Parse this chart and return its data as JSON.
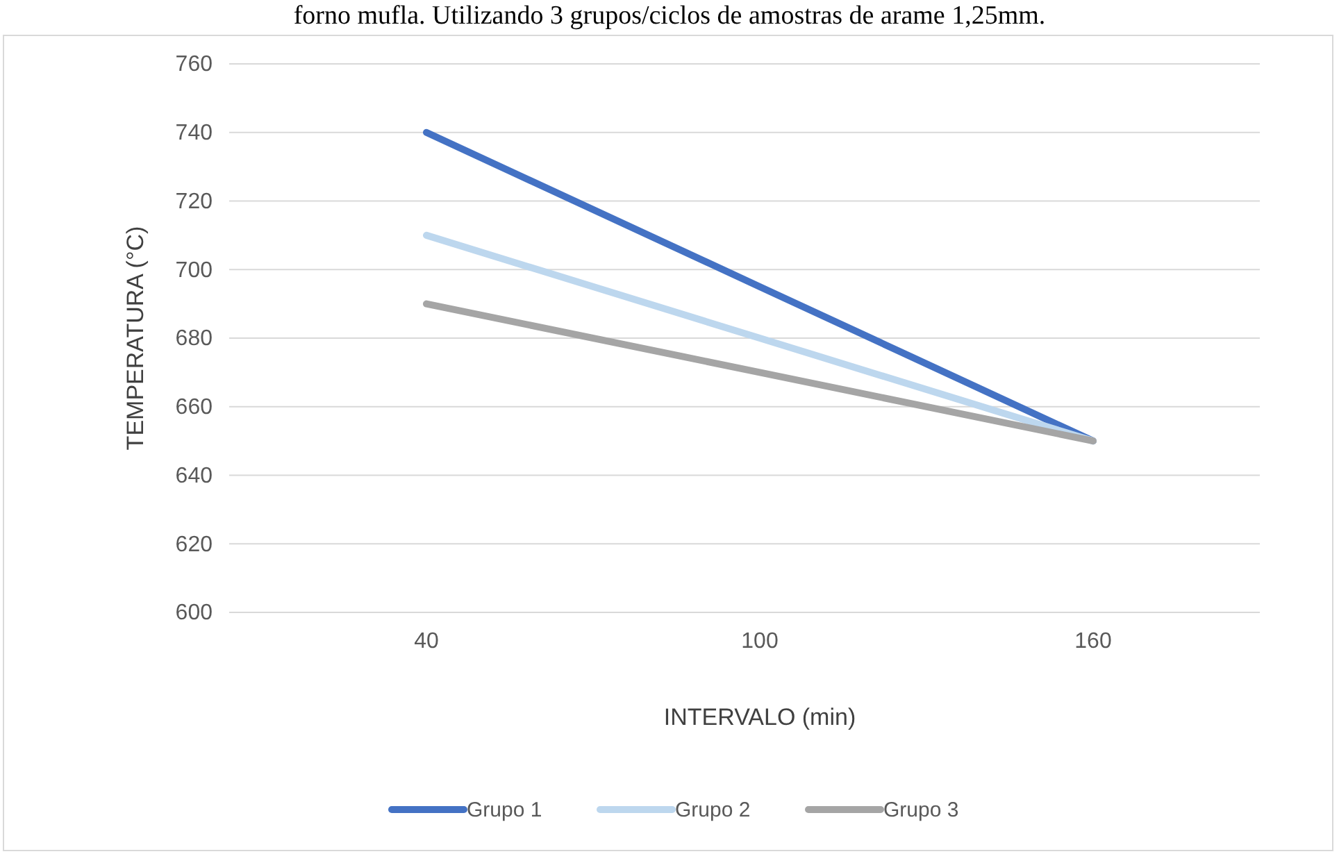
{
  "chart_data": {
    "type": "line",
    "title": "forno mufla. Utilizando 3 grupos/ciclos de amostras de arame 1,25mm.",
    "xlabel": "INTERVALO (min)",
    "ylabel": "TEMPERATURA (°C)",
    "categories": [
      "40",
      "100",
      "160"
    ],
    "series": [
      {
        "name": "Grupo 1",
        "color": "#4472c4",
        "values": [
          740,
          695,
          650
        ]
      },
      {
        "name": "Grupo 2",
        "color": "#bdd7ee",
        "values": [
          710,
          680,
          650
        ]
      },
      {
        "name": "Grupo 3",
        "color": "#a5a5a5",
        "values": [
          690,
          670,
          650
        ]
      }
    ],
    "ylim": [
      600,
      760
    ],
    "yticks": [
      600,
      620,
      640,
      660,
      680,
      700,
      720,
      740,
      760
    ],
    "grid": "y",
    "legend": "bottom",
    "marker": "none",
    "line_style": "solid"
  }
}
